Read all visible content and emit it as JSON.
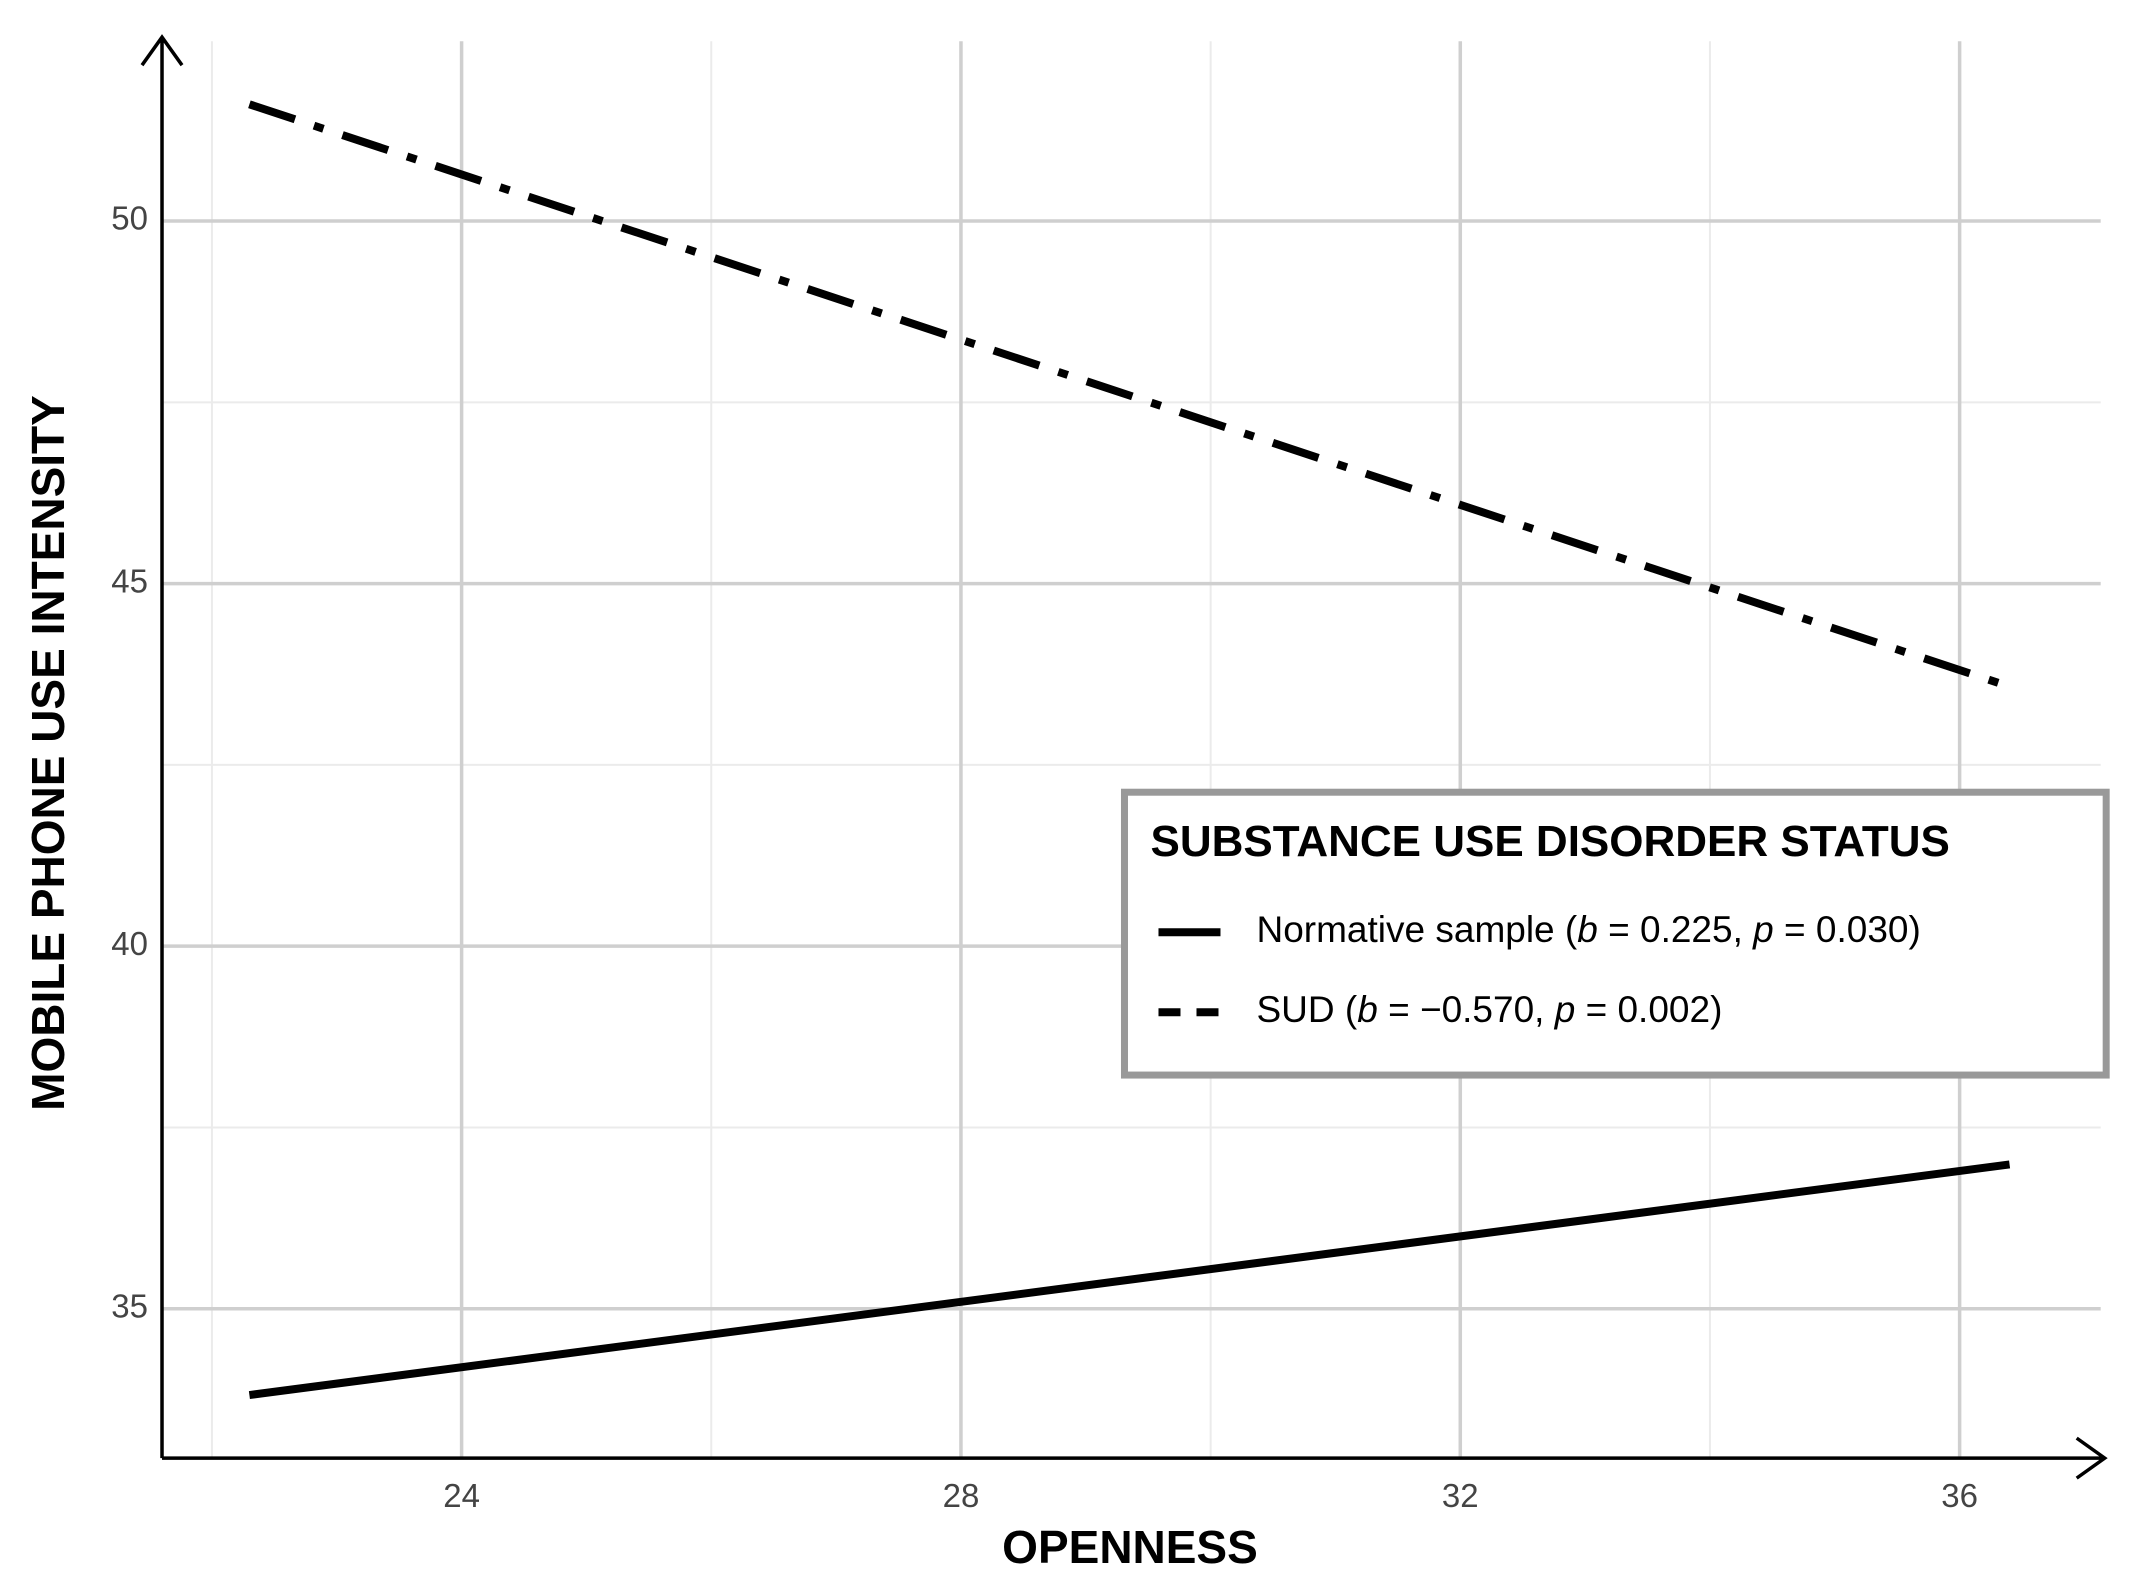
{
  "chart_data": {
    "type": "line",
    "xlabel": "OPENNESS",
    "ylabel": "MOBILE PHONE USE INTENSITY",
    "x": [
      22.3,
      36.4
    ],
    "series": [
      {
        "name": "Normative sample (b = 0.225, p = 0.030)",
        "color": "#000000",
        "dash": "solid",
        "values": [
          33.81,
          36.99
        ]
      },
      {
        "name": "SUD (b = −0.570, p = 0.002)",
        "color": "#000000",
        "dash": "dashdot",
        "values": [
          51.61,
          43.58
        ]
      }
    ],
    "legend_title": "SUBSTANCE USE DISORDER STATUS",
    "legend_position": "right",
    "xlim": [
      21.6,
      37.13
    ],
    "ylim": [
      32.94,
      52.48
    ],
    "xticks": [
      24,
      28,
      32,
      36
    ],
    "yticks": [
      35,
      40,
      45,
      50
    ],
    "x_minor_grid": [
      22,
      26,
      30,
      34
    ],
    "y_minor_grid": [
      37.5,
      42.5,
      47.5
    ],
    "grid": true
  }
}
